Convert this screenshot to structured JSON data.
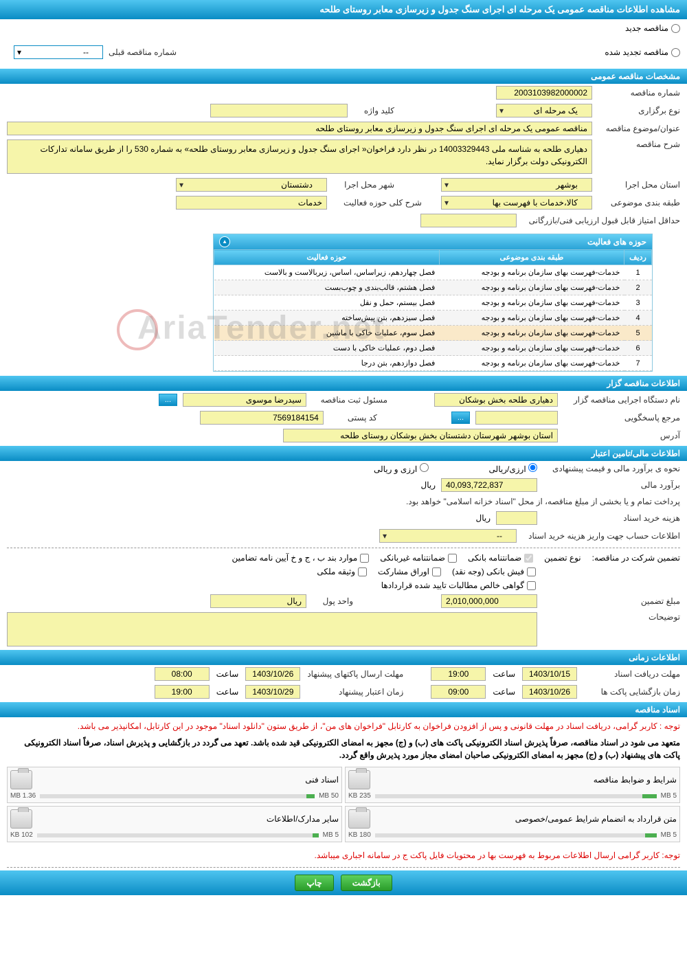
{
  "header": {
    "title": "مشاهده اطلاعات مناقصه عمومی یک مرحله ای اجرای سنگ جدول و زیرسازی معابر روستای طلحه"
  },
  "tender_type": {
    "new_label": "مناقصه جدید",
    "renewed_label": "مناقصه تجدید شده",
    "prev_label": "شماره مناقصه قبلی",
    "prev_value": "--"
  },
  "sections": {
    "general": "مشخصات مناقصه عمومی",
    "activities": "حوزه های فعالیت",
    "holder": "اطلاعات مناقصه گزار",
    "financial": "اطلاعات مالی/تامین اعتبار",
    "timing": "اطلاعات زمانی",
    "documents": "اسناد مناقصه"
  },
  "general": {
    "number_label": "شماره مناقصه",
    "number_value": "2003103982000002",
    "type_label": "نوع برگزاری",
    "type_value": "یک مرحله ای",
    "keyword_label": "کلید واژه",
    "keyword_value": "",
    "title_label": "عنوان/موضوع مناقصه",
    "title_value": "مناقصه عمومی یک مرحله ای اجرای سنگ جدول و زیرسازی معابر روستای طلحه",
    "desc_label": "شرح مناقصه",
    "desc_value": "دهیاری طلحه به شناسه ملی 14003329443 در نظر دارد فراخوان« اجرای سنگ جدول و زیرسازی معابر روستای طلحه» به شماره 530 را از طریق سامانه تدارکات الکترونیکی دولت برگزار نماید.",
    "province_label": "استان محل اجرا",
    "province_value": "بوشهر",
    "city_label": "شهر محل اجرا",
    "city_value": "دشتستان",
    "category_label": "طبقه بندی موضوعی",
    "category_value": "کالا،خدمات با فهرست بها",
    "activity_desc_label": "شرح کلی حوزه فعالیت",
    "activity_desc_value": "خدمات",
    "min_score_label": "حداقل امتیاز قابل قبول ارزیابی فنی/بازرگانی",
    "min_score_value": ""
  },
  "activities": {
    "columns": {
      "row": "ردیف",
      "category": "طبقه بندی موضوعی",
      "activity": "حوزه فعالیت"
    },
    "rows": [
      {
        "n": "1",
        "cat": "خدمات-فهرست بهای سازمان برنامه و بودجه",
        "act": "فصل چهاردهم، زیراساس، اساس، زیربالاست  و بالاست"
      },
      {
        "n": "2",
        "cat": "خدمات-فهرست بهای سازمان برنامه و بودجه",
        "act": "فصل هشتم، قالب‌بندی و چوب‌بست"
      },
      {
        "n": "3",
        "cat": "خدمات-فهرست بهای سازمان برنامه و بودجه",
        "act": "فصل بیستم، حمل و نقل"
      },
      {
        "n": "4",
        "cat": "خدمات-فهرست بهای سازمان برنامه و بودجه",
        "act": "فصل سیزدهم، بتن پیش‌ساخته"
      },
      {
        "n": "5",
        "cat": "خدمات-فهرست بهای سازمان برنامه و بودجه",
        "act": "فصل سوم، عملیات خاکی با ماشین"
      },
      {
        "n": "6",
        "cat": "خدمات-فهرست بهای سازمان برنامه و بودجه",
        "act": "فصل دوم، عملیات خاکی با دست"
      },
      {
        "n": "7",
        "cat": "خدمات-فهرست بهای سازمان برنامه و بودجه",
        "act": "فصل دوازدهم، بتن درجا"
      }
    ]
  },
  "holder": {
    "org_label": "نام دستگاه اجرایی مناقصه گزار",
    "org_value": "دهیاری طلحه بخش بوشکان",
    "registrar_label": "مسئول ثبت مناقصه",
    "registrar_value": "سیدرضا موسوی",
    "support_label": "مرجع پاسخگویی",
    "support_value": "",
    "postal_label": "کد پستی",
    "postal_value": "7569184154",
    "address_label": "آدرس",
    "address_value": "استان بوشهر شهرستان دشتستان بخش بوشکان روستای طلحه",
    "more_btn": "..."
  },
  "financial": {
    "method_label": "نحوه ی برآورد مالی و قیمت پیشنهادی",
    "arzirial_label": "ارزی/ریالی",
    "arzirial2_label": "ارزی و ریالی",
    "estimate_label": "برآورد مالی",
    "estimate_value": "40,093,722,837",
    "currency": "ریال",
    "payment_note": "پرداخت تمام و یا بخشی از مبلغ مناقصه، از محل \"اسناد خزانه اسلامی\" خواهد بود.",
    "purchase_label": "هزینه خرید اسناد",
    "purchase_value": "",
    "account_label": "اطلاعات حساب جهت واریز هزینه خرید اسناد",
    "account_value": "--",
    "guarantee_label": "تضمین شرکت در مناقصه:",
    "guarantee_type_label": "نوع تضمین",
    "gt_bank": "ضمانتنامه بانکی",
    "gt_nonbank": "ضمانتنامه غیربانکی",
    "gt_bonds": "موارد بند ب ، ج و خ آیین نامه تضامین",
    "gt_cash": "فیش بانکی (وجه نقد)",
    "gt_stocks": "اوراق مشارکت",
    "gt_property": "وثیقه ملکی",
    "gt_claims": "گواهی خالص مطالبات تایید شده قراردادها",
    "amount_label": "مبلغ تضمین",
    "amount_value": "2,010,000,000",
    "unit_label": "واحد پول",
    "unit_value": "ریال",
    "notes_label": "توضیحات",
    "notes_value": ""
  },
  "timing": {
    "receive_deadline_label": "مهلت دریافت اسناد",
    "receive_date": "1403/10/15",
    "receive_time_label": "ساعت",
    "receive_time": "19:00",
    "send_deadline_label": "مهلت ارسال پاکتهای پیشنهاد",
    "send_date": "1403/10/26",
    "send_time_label": "ساعت",
    "send_time": "08:00",
    "open_label": "زمان بازگشایی پاکت ها",
    "open_date": "1403/10/26",
    "open_time_label": "ساعت",
    "open_time": "09:00",
    "validity_label": "زمان اعتبار پیشنهاد",
    "validity_date": "1403/10/29",
    "validity_time_label": "ساعت",
    "validity_time": "19:00"
  },
  "documents": {
    "note1": "توجه : کاربر گرامی، دریافت اسناد در مهلت قانونی و پس از افزودن فراخوان به کارتابل \"فراخوان های من\"، از طریق ستون \"دانلود اسناد\" موجود در این کارتابل، امکانپذیر می باشد.",
    "note2": "متعهد می شود در اسناد مناقصه، صرفاً پذیرش اسناد الکترونیکی پاکت های (ب) و (ج) مجهز به امضای الکترونیکی قید شده باشد. تعهد می گردد در بازگشایی و پذیرش اسناد، صرفاً اسناد الکترونیکی پاکت های پیشنهاد (ب) و (ج) مجهز به امضای الکترونیکی صاحبان امضای مجاز مورد پذیرش واقع گردد.",
    "note3": "توجه: کاربر گرامی ارسال اطلاعات مربوط به فهرست بها در محتویات فایل پاکت ج در سامانه اجباری میباشد.",
    "files": [
      {
        "title": "شرایط و ضوابط مناقصه",
        "max": "5 MB",
        "size": "235 KB",
        "progress": 5
      },
      {
        "title": "اسناد فنی",
        "max": "50 MB",
        "size": "1.36 MB",
        "progress": 3
      },
      {
        "title": "متن قرارداد به انضمام شرایط عمومی/خصوصی",
        "max": "5 MB",
        "size": "180 KB",
        "progress": 4
      },
      {
        "title": "سایر مدارک/اطلاعات",
        "max": "5 MB",
        "size": "102 KB",
        "progress": 2
      }
    ]
  },
  "buttons": {
    "back": "بازگشت",
    "print": "چاپ"
  },
  "watermark": "AriaTender.net"
}
